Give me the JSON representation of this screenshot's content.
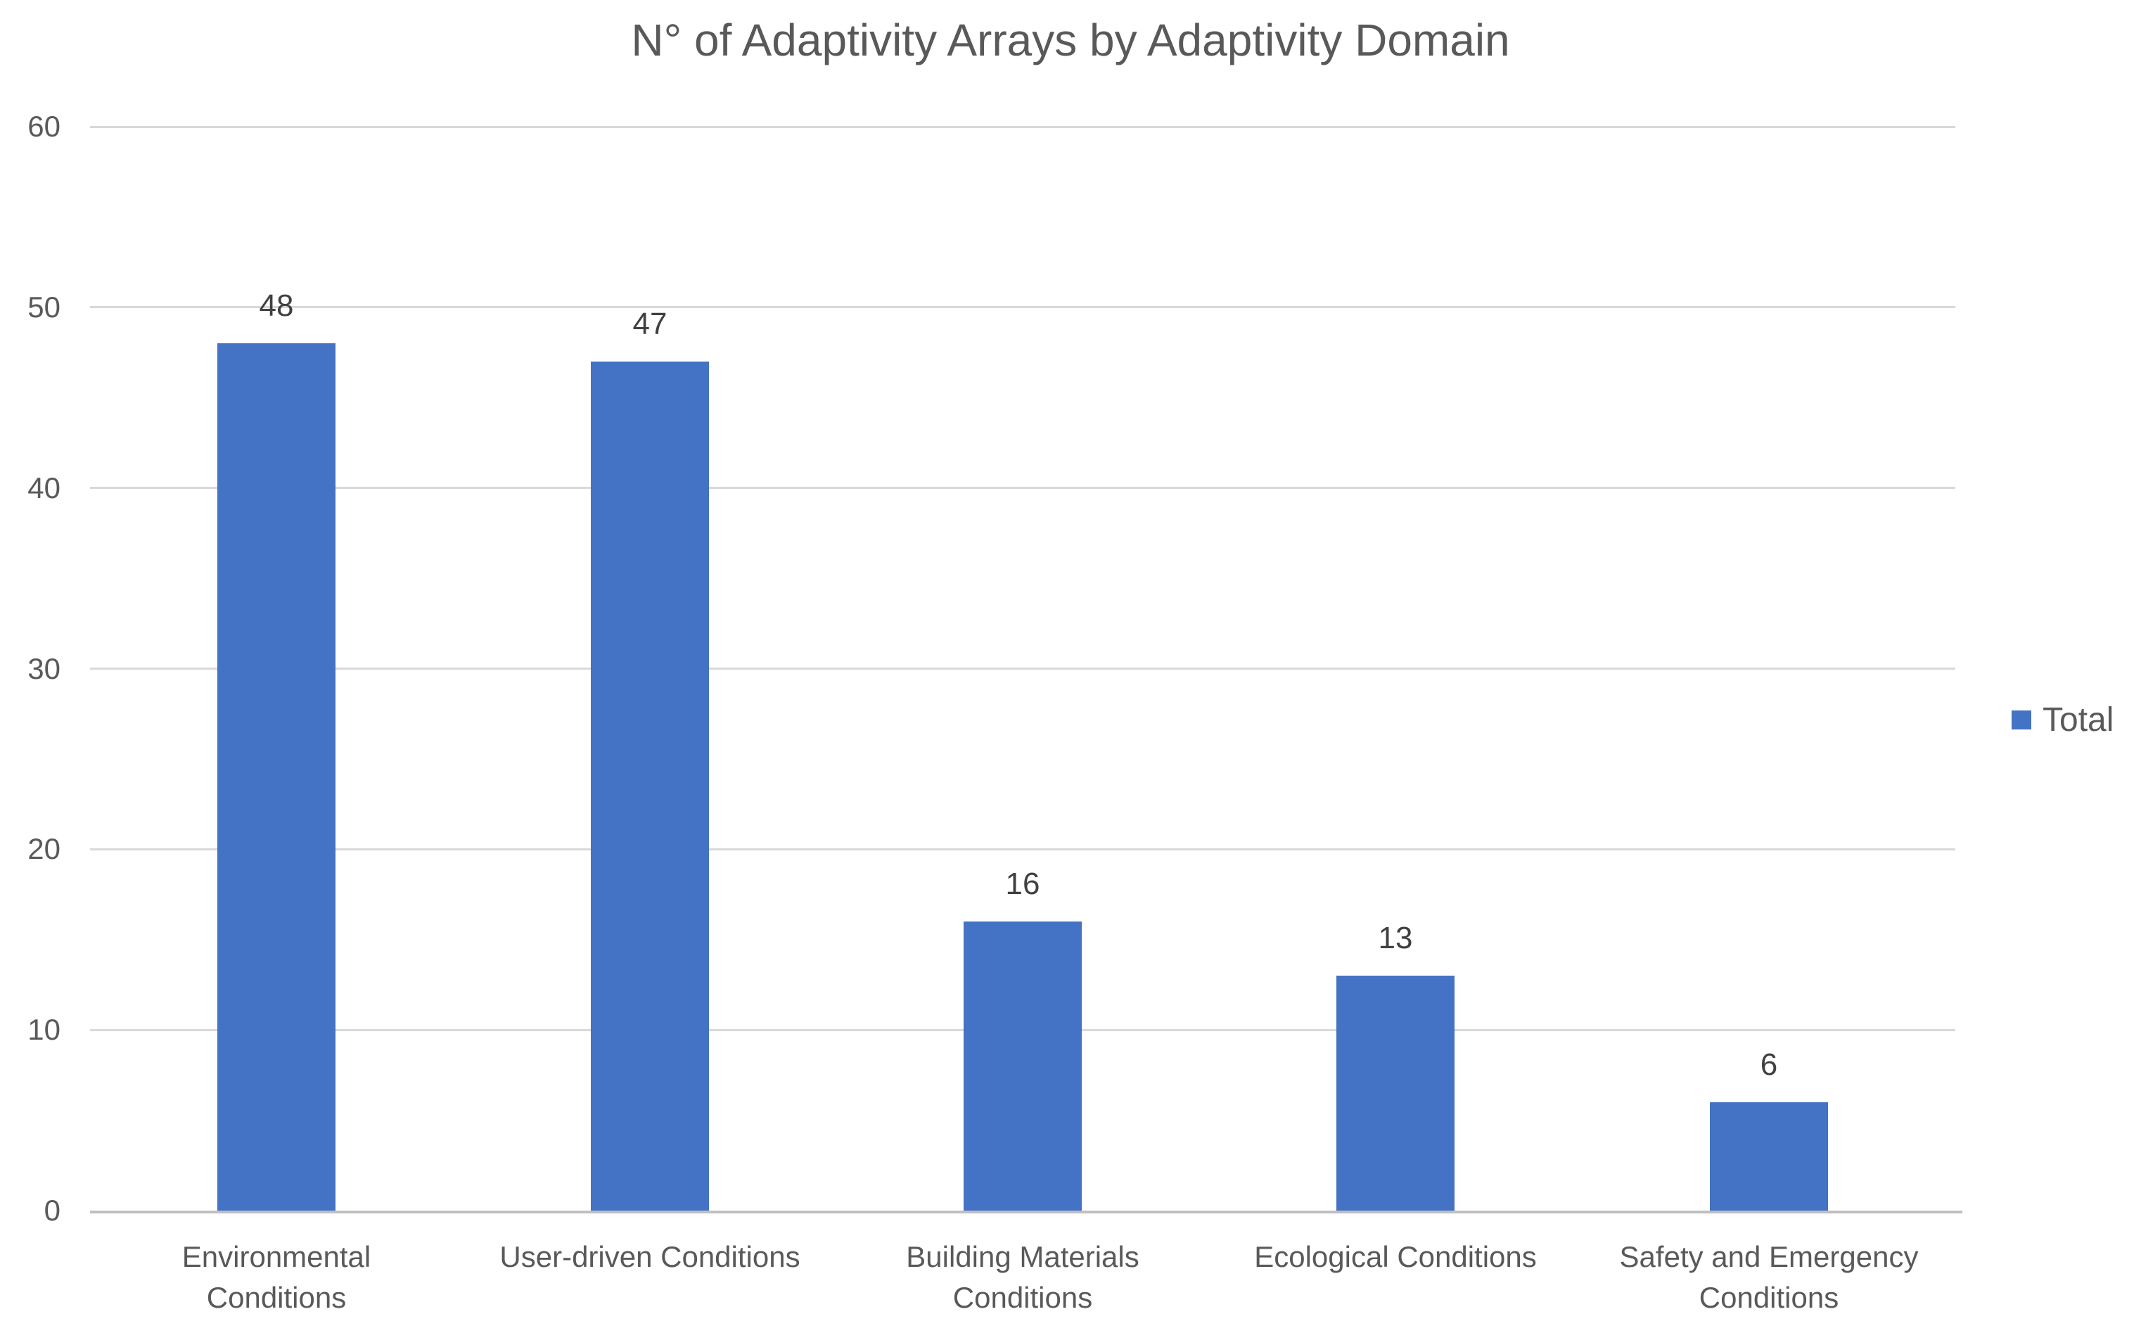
{
  "chart_data": {
    "type": "bar",
    "title": "N° of Adaptivity Arrays by Adaptivity Domain",
    "categories": [
      "Environmental Conditions",
      "User-driven Conditions",
      "Building Materials Conditions",
      "Ecological Conditions",
      "Safety and Emergency Conditions"
    ],
    "category_lines": [
      [
        "Environmental",
        "Conditions"
      ],
      [
        "User-driven Conditions"
      ],
      [
        "Building Materials",
        "Conditions"
      ],
      [
        "Ecological Conditions"
      ],
      [
        "Safety and Emergency",
        "Conditions"
      ]
    ],
    "series": [
      {
        "name": "Total",
        "color": "#4472C4",
        "values": [
          48,
          47,
          16,
          13,
          6
        ]
      }
    ],
    "data_labels": true,
    "xlabel": "",
    "ylabel": "",
    "ylim": [
      0,
      60
    ],
    "yticks": [
      0,
      10,
      20,
      30,
      40,
      50,
      60
    ],
    "grid": true,
    "legend_position": "right",
    "colors": {
      "bar": "#4472C4",
      "gridline": "#D9D9D9",
      "axis_line": "#BFBFBF",
      "title_text": "#595959",
      "tick_text": "#595959",
      "data_label_text": "#404040",
      "background": "#FFFFFF"
    }
  }
}
